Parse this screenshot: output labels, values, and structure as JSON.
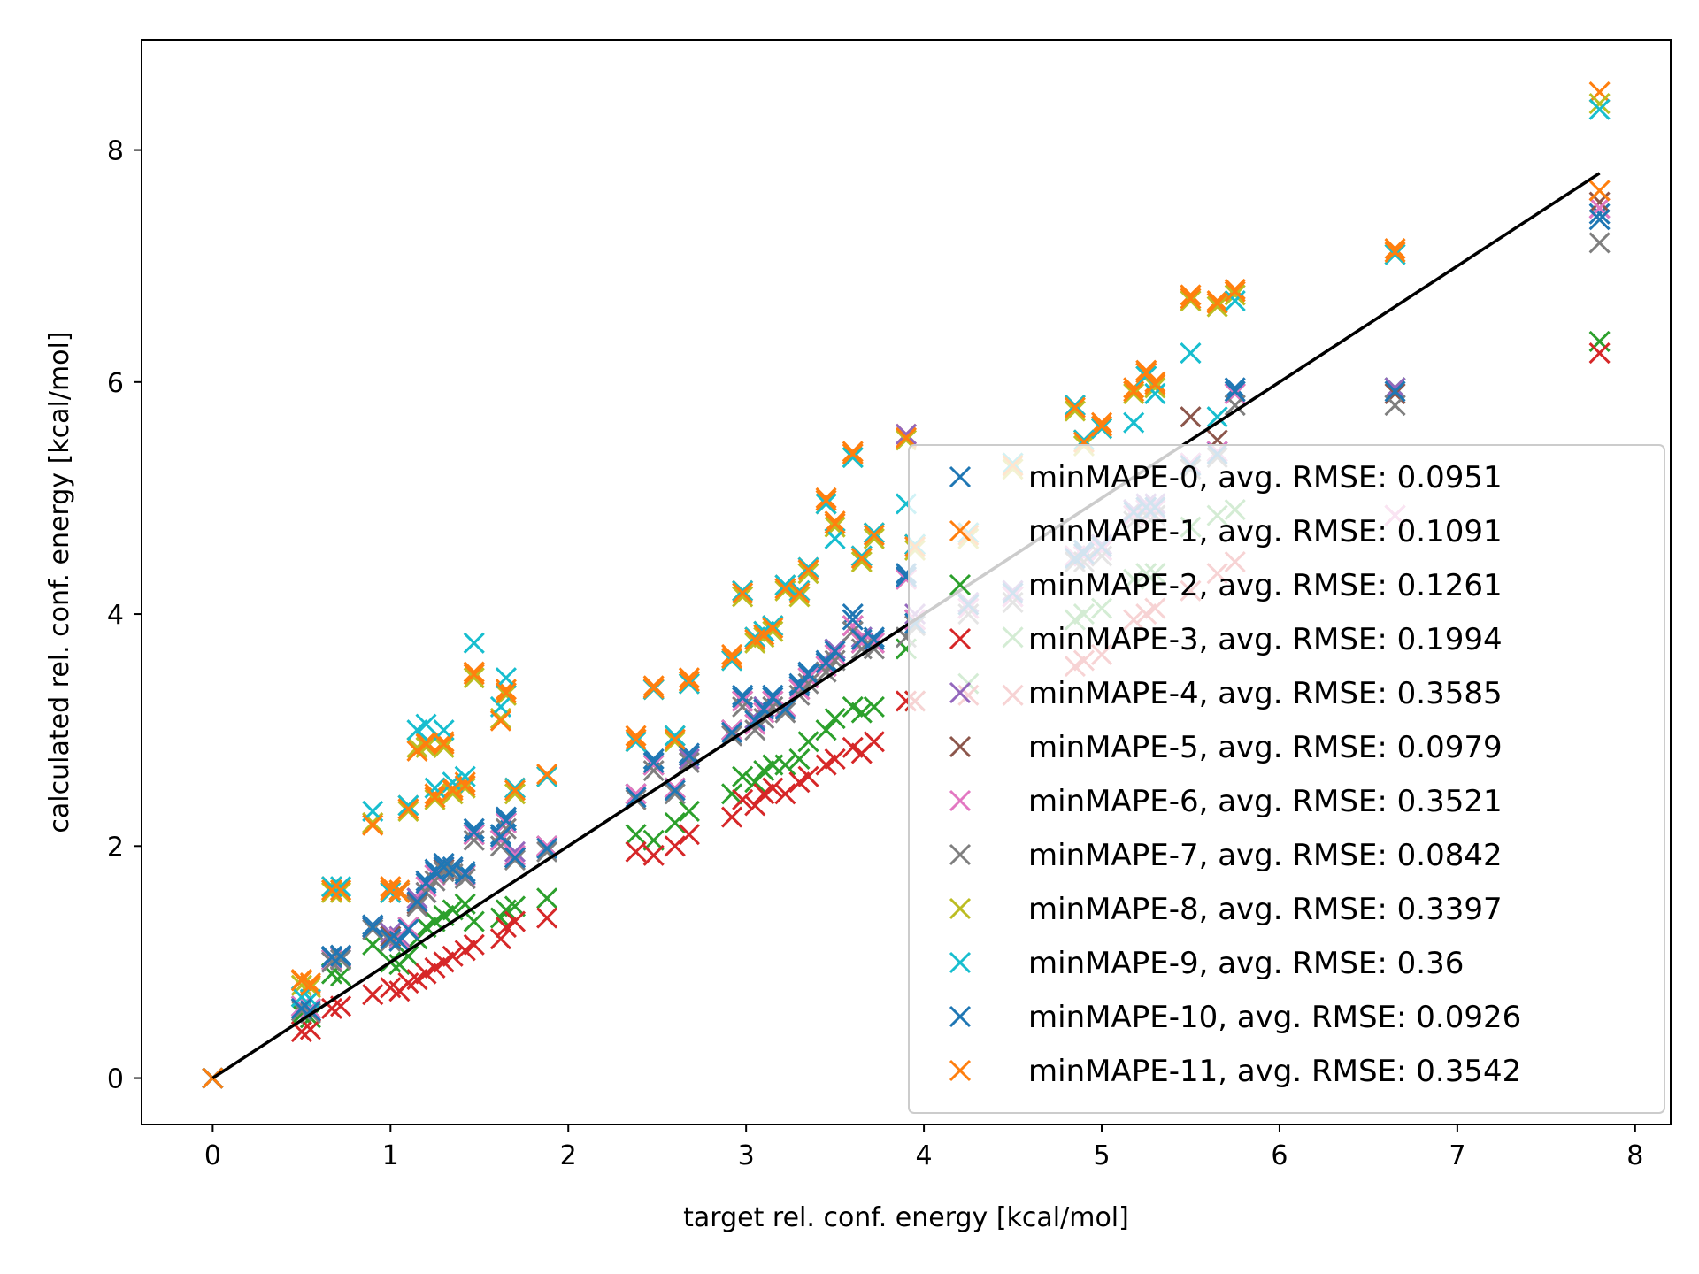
{
  "chart_data": {
    "type": "scatter",
    "title": "",
    "xlabel": "target rel. conf. energy [kcal/mol]",
    "ylabel": "calculated rel. conf. energy [kcal/mol]",
    "xlim": [
      -0.4,
      8.2
    ],
    "ylim": [
      -0.4,
      8.95
    ],
    "xticks": [
      0,
      1,
      2,
      3,
      4,
      5,
      6,
      7,
      8
    ],
    "yticks": [
      0,
      2,
      4,
      6,
      8
    ],
    "grid": false,
    "legend_position": "lower-right",
    "marker": "x",
    "reference_line": {
      "x": [
        0,
        7.8
      ],
      "y": [
        0,
        7.8
      ],
      "color": "#000000"
    },
    "x": [
      0.0,
      0.5,
      0.55,
      0.67,
      0.72,
      0.9,
      1.0,
      1.05,
      1.1,
      1.15,
      1.2,
      1.25,
      1.3,
      1.35,
      1.42,
      1.47,
      1.62,
      1.65,
      1.7,
      1.88,
      2.38,
      2.48,
      2.6,
      2.68,
      2.92,
      2.98,
      3.05,
      3.1,
      3.15,
      3.22,
      3.3,
      3.35,
      3.45,
      3.5,
      3.6,
      3.65,
      3.72,
      3.9,
      3.95,
      4.25,
      4.5,
      4.85,
      4.9,
      5.0,
      5.18,
      5.25,
      5.3,
      5.5,
      5.65,
      5.75,
      6.65,
      7.8
    ],
    "series": [
      {
        "name": "minMAPE-0, avg. RMSE: 0.0951",
        "color": "#1f77b4",
        "y": [
          0.0,
          0.62,
          0.6,
          1.05,
          1.06,
          1.32,
          1.22,
          1.2,
          1.3,
          1.55,
          1.7,
          1.8,
          1.85,
          1.82,
          1.78,
          2.15,
          2.1,
          2.25,
          1.9,
          2.0,
          2.45,
          2.75,
          2.5,
          2.8,
          3.0,
          3.3,
          3.1,
          3.2,
          3.3,
          3.2,
          3.4,
          3.5,
          3.6,
          3.7,
          4.0,
          3.8,
          3.8,
          4.35,
          3.95,
          4.1,
          4.2,
          4.5,
          4.55,
          4.6,
          4.9,
          4.95,
          4.95,
          5.3,
          5.4,
          5.95,
          5.95,
          7.45
        ]
      },
      {
        "name": "minMAPE-1, avg. RMSE: 0.1091",
        "color": "#ff7f0e",
        "y": [
          0.0,
          0.85,
          0.82,
          1.65,
          1.62,
          2.2,
          1.65,
          1.62,
          2.35,
          2.85,
          2.9,
          2.45,
          2.9,
          2.5,
          2.55,
          3.5,
          3.1,
          3.35,
          2.5,
          2.6,
          2.95,
          3.38,
          2.95,
          3.45,
          3.65,
          4.2,
          3.8,
          3.85,
          3.9,
          4.25,
          4.2,
          4.4,
          5.0,
          4.8,
          5.4,
          4.5,
          4.7,
          5.55,
          4.6,
          4.7,
          5.3,
          5.8,
          5.5,
          5.65,
          5.95,
          6.1,
          6.0,
          6.75,
          6.7,
          6.8,
          7.15,
          8.5
        ]
      },
      {
        "name": "minMAPE-2, avg. RMSE: 0.1261",
        "color": "#2ca02c",
        "y": [
          0.0,
          0.55,
          0.52,
          0.9,
          0.88,
          1.15,
          1.0,
          0.98,
          1.05,
          1.2,
          1.3,
          1.35,
          1.4,
          1.45,
          1.5,
          1.35,
          1.38,
          1.45,
          1.48,
          1.55,
          2.1,
          2.05,
          2.2,
          2.3,
          2.45,
          2.6,
          2.55,
          2.65,
          2.7,
          2.7,
          2.75,
          2.9,
          3.0,
          3.1,
          3.2,
          3.15,
          3.2,
          3.7,
          3.25,
          3.4,
          3.8,
          3.95,
          4.0,
          4.05,
          4.3,
          4.35,
          4.35,
          4.75,
          4.85,
          4.9,
          5.95,
          6.35
        ]
      },
      {
        "name": "minMAPE-3, avg. RMSE: 0.1994",
        "color": "#d62728",
        "y": [
          0.0,
          0.4,
          0.42,
          0.6,
          0.62,
          0.72,
          0.78,
          0.75,
          0.82,
          0.85,
          0.9,
          0.95,
          1.0,
          1.05,
          1.1,
          1.15,
          1.2,
          1.3,
          1.35,
          1.38,
          1.95,
          1.92,
          2.0,
          2.1,
          2.25,
          2.4,
          2.35,
          2.45,
          2.5,
          2.45,
          2.55,
          2.6,
          2.7,
          2.75,
          2.85,
          2.8,
          2.9,
          3.25,
          3.25,
          3.3,
          3.3,
          3.55,
          3.6,
          3.65,
          3.95,
          4.0,
          4.05,
          4.2,
          4.35,
          4.45,
          4.85,
          6.25
        ]
      },
      {
        "name": "minMAPE-4, avg. RMSE: 0.3585",
        "color": "#9467bd",
        "y": [
          0.0,
          0.6,
          0.58,
          1.0,
          1.02,
          1.3,
          1.25,
          1.22,
          1.3,
          1.55,
          1.6,
          1.75,
          1.8,
          1.8,
          1.75,
          2.1,
          2.05,
          2.2,
          1.95,
          2.0,
          2.45,
          2.7,
          2.5,
          2.75,
          3.0,
          3.25,
          3.1,
          3.2,
          3.25,
          3.2,
          3.35,
          3.45,
          3.55,
          3.7,
          3.9,
          3.8,
          3.75,
          5.55,
          4.0,
          4.1,
          4.2,
          4.5,
          4.5,
          4.6,
          4.9,
          4.95,
          4.95,
          5.3,
          5.4,
          5.9,
          5.95,
          7.5
        ]
      },
      {
        "name": "minMAPE-5, avg. RMSE: 0.0979",
        "color": "#8c564b",
        "y": [
          0.0,
          0.6,
          0.58,
          1.02,
          1.05,
          1.3,
          1.22,
          1.2,
          1.3,
          1.5,
          1.65,
          1.75,
          1.8,
          1.8,
          1.75,
          2.1,
          2.05,
          2.2,
          1.9,
          2.0,
          2.45,
          2.7,
          2.5,
          2.78,
          3.0,
          3.25,
          3.05,
          3.15,
          3.25,
          3.2,
          3.35,
          3.45,
          3.55,
          3.65,
          3.9,
          3.75,
          3.75,
          4.3,
          3.95,
          4.05,
          4.15,
          4.5,
          4.5,
          4.55,
          4.85,
          4.9,
          4.9,
          5.7,
          5.5,
          5.9,
          5.9,
          7.55
        ]
      },
      {
        "name": "minMAPE-6, avg. RMSE: 0.3521",
        "color": "#e377c2",
        "y": [
          0.0,
          0.62,
          0.6,
          1.02,
          1.04,
          1.3,
          1.2,
          1.2,
          1.3,
          1.52,
          1.65,
          1.75,
          1.82,
          1.8,
          1.75,
          2.1,
          2.05,
          2.2,
          1.92,
          2.0,
          2.45,
          2.7,
          2.5,
          2.78,
          3.0,
          3.25,
          3.05,
          3.15,
          3.25,
          3.2,
          3.35,
          3.45,
          3.55,
          3.65,
          3.9,
          3.75,
          3.75,
          4.3,
          3.95,
          4.05,
          4.15,
          4.5,
          4.5,
          4.55,
          4.85,
          4.9,
          4.9,
          5.3,
          5.4,
          5.9,
          4.85,
          7.5
        ]
      },
      {
        "name": "minMAPE-7, avg. RMSE: 0.0842",
        "color": "#7f7f7f",
        "y": [
          0.0,
          0.58,
          0.56,
          1.0,
          1.02,
          1.28,
          1.18,
          1.18,
          1.28,
          1.48,
          1.6,
          1.7,
          1.78,
          1.76,
          1.72,
          2.05,
          2.0,
          2.15,
          1.88,
          1.95,
          2.4,
          2.65,
          2.45,
          2.72,
          2.95,
          3.2,
          3.0,
          3.1,
          3.2,
          3.15,
          3.3,
          3.4,
          3.5,
          3.6,
          3.85,
          3.7,
          3.7,
          3.8,
          3.9,
          4.0,
          4.1,
          4.45,
          4.45,
          4.5,
          4.8,
          4.85,
          4.85,
          5.25,
          5.35,
          5.8,
          5.8,
          7.2
        ]
      },
      {
        "name": "minMAPE-8, avg. RMSE: 0.3397",
        "color": "#bcbd22",
        "y": [
          0.0,
          0.8,
          0.78,
          1.6,
          1.6,
          2.2,
          1.6,
          1.6,
          2.3,
          2.85,
          2.85,
          2.4,
          2.85,
          2.45,
          2.5,
          3.45,
          3.1,
          3.3,
          2.45,
          2.6,
          2.9,
          3.35,
          2.9,
          3.4,
          3.6,
          4.15,
          3.75,
          3.8,
          3.85,
          4.2,
          4.15,
          4.35,
          4.95,
          4.75,
          5.35,
          4.45,
          4.65,
          5.5,
          4.55,
          4.65,
          5.25,
          5.75,
          5.45,
          5.6,
          5.9,
          6.05,
          5.95,
          6.7,
          6.65,
          6.75,
          7.1,
          8.4
        ]
      },
      {
        "name": "minMAPE-9, avg. RMSE: 0.36",
        "color": "#17becf",
        "y": [
          0.0,
          0.7,
          0.68,
          1.65,
          1.65,
          2.3,
          1.6,
          1.6,
          2.35,
          3.0,
          3.05,
          2.5,
          3.0,
          2.55,
          2.6,
          3.75,
          3.2,
          3.45,
          2.5,
          2.6,
          2.9,
          3.35,
          2.95,
          3.4,
          3.6,
          4.2,
          3.8,
          3.85,
          3.9,
          4.25,
          4.2,
          4.4,
          4.95,
          4.65,
          5.35,
          4.5,
          4.7,
          4.95,
          4.6,
          4.7,
          5.3,
          5.8,
          5.5,
          5.6,
          5.65,
          6.05,
          5.9,
          6.25,
          5.7,
          6.7,
          7.1,
          8.35
        ]
      },
      {
        "name": "minMAPE-10, avg. RMSE: 0.0926",
        "color": "#1f77b4",
        "y": [
          0.0,
          0.6,
          0.58,
          1.04,
          1.05,
          1.3,
          1.2,
          1.18,
          1.28,
          1.52,
          1.68,
          1.78,
          1.82,
          1.8,
          1.76,
          2.12,
          2.08,
          2.22,
          1.9,
          1.98,
          2.42,
          2.72,
          2.48,
          2.78,
          2.98,
          3.28,
          3.08,
          3.18,
          3.28,
          3.18,
          3.38,
          3.48,
          3.58,
          3.68,
          3.95,
          3.78,
          3.78,
          4.32,
          3.92,
          4.08,
          4.18,
          4.48,
          4.52,
          4.58,
          4.88,
          4.92,
          4.92,
          5.28,
          5.38,
          5.92,
          5.92,
          7.4
        ]
      },
      {
        "name": "minMAPE-11, avg. RMSE: 0.3542",
        "color": "#ff7f0e",
        "y": [
          0.0,
          0.84,
          0.8,
          1.62,
          1.62,
          2.18,
          1.62,
          1.6,
          2.32,
          2.82,
          2.88,
          2.42,
          2.88,
          2.48,
          2.52,
          3.48,
          3.08,
          3.32,
          2.48,
          2.62,
          2.92,
          3.36,
          2.92,
          3.42,
          3.62,
          4.18,
          3.78,
          3.82,
          3.88,
          4.22,
          4.18,
          4.38,
          4.98,
          4.78,
          5.38,
          4.48,
          4.68,
          5.52,
          4.58,
          4.68,
          5.28,
          5.78,
          5.48,
          5.62,
          5.92,
          6.08,
          5.98,
          6.72,
          6.68,
          6.78,
          7.12,
          7.65
        ]
      }
    ]
  }
}
